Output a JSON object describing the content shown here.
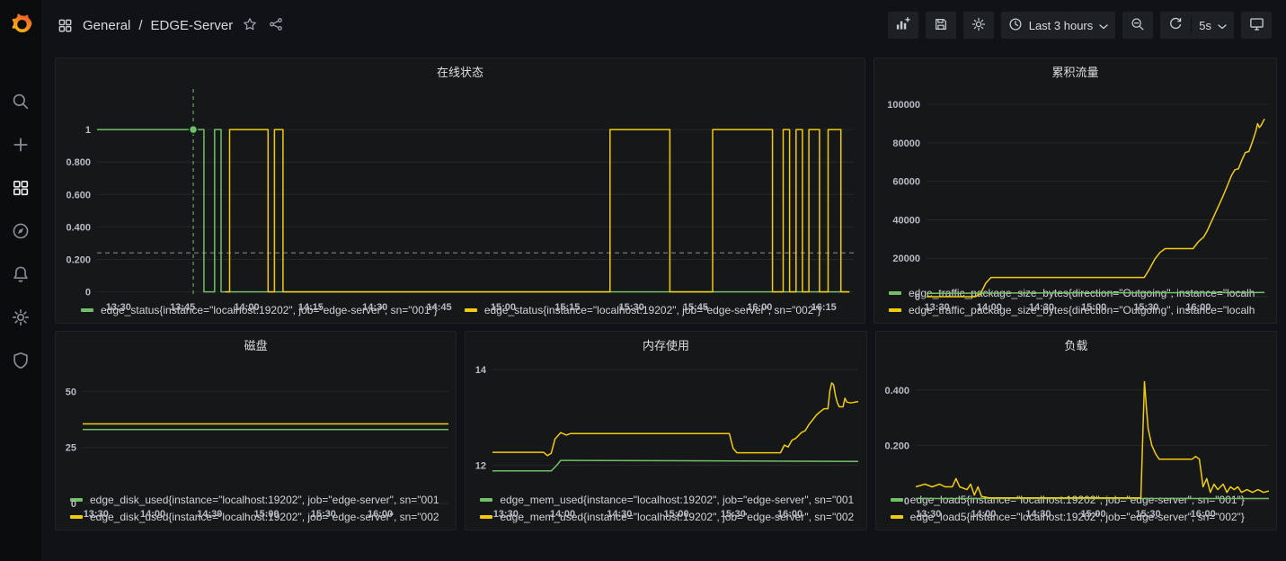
{
  "app": {
    "accent_color": "#f46800",
    "series_green": "#73bf69",
    "series_yellow": "#f2cc0c"
  },
  "sidebar": {
    "logo": "grafana-logo",
    "items": [
      {
        "id": "search",
        "icon": "search-icon"
      },
      {
        "id": "create",
        "icon": "plus-icon"
      },
      {
        "id": "dashboards",
        "icon": "dashboards-icon",
        "active": true
      },
      {
        "id": "explore",
        "icon": "compass-icon"
      },
      {
        "id": "alerting",
        "icon": "bell-icon"
      },
      {
        "id": "configuration",
        "icon": "gear-icon"
      },
      {
        "id": "server-admin",
        "icon": "shield-icon"
      }
    ]
  },
  "header": {
    "breadcrumb": {
      "folder": "General",
      "separator": "/",
      "dashboard": "EDGE-Server"
    },
    "actions": {
      "time_range": "Last 3 hours",
      "refresh_interval": "5s"
    }
  },
  "chart_data": {
    "status": {
      "type": "line",
      "title": "在线状态",
      "margin_left": 46,
      "margin_right": 12,
      "x_range": [
        -5,
        172
      ],
      "y_range": [
        -0.03,
        1.25
      ],
      "x_ticks": [
        {
          "t": 0,
          "label": "13:30"
        },
        {
          "t": 15,
          "label": "13:45"
        },
        {
          "t": 30,
          "label": "14:00"
        },
        {
          "t": 45,
          "label": "14:15"
        },
        {
          "t": 60,
          "label": "14:30"
        },
        {
          "t": 75,
          "label": "14:45"
        },
        {
          "t": 90,
          "label": "15:00"
        },
        {
          "t": 105,
          "label": "15:15"
        },
        {
          "t": 120,
          "label": "15:30"
        },
        {
          "t": 135,
          "label": "15:45"
        },
        {
          "t": 150,
          "label": "16:00"
        },
        {
          "t": 165,
          "label": "16:15"
        }
      ],
      "y_ticks": [
        {
          "v": 0,
          "label": "0"
        },
        {
          "v": 0.2,
          "label": "0.200"
        },
        {
          "v": 0.4,
          "label": "0.400"
        },
        {
          "v": 0.6,
          "label": "0.600"
        },
        {
          "v": 0.8,
          "label": "0.800"
        },
        {
          "v": 1,
          "label": "1"
        }
      ],
      "threshold": {
        "y": 0.24,
        "color": "#8a9099"
      },
      "annotation": {
        "t": 17.5,
        "color": "#73bf69"
      },
      "marker": {
        "t": 17.5,
        "v": 1,
        "color": "#73bf69"
      },
      "series": [
        {
          "name": "edge_status{instance=\"localhost:19202\", job=\"edge-server\", sn=\"001\"}",
          "color": "#73bf69",
          "points": [
            [
              -5,
              1
            ],
            [
              20,
              1
            ],
            [
              20,
              0
            ],
            [
              22.5,
              0
            ],
            [
              22.5,
              1
            ],
            [
              24,
              1
            ],
            [
              24,
              0
            ],
            [
              171,
              0
            ]
          ]
        },
        {
          "name": "edge_status{instance=\"localhost:19202\", job=\"edge-server\", sn=\"002\"}",
          "color": "#f2cc0c",
          "points": [
            [
              25,
              0
            ],
            [
              26,
              0
            ],
            [
              26,
              1
            ],
            [
              35,
              1
            ],
            [
              35,
              0
            ],
            [
              36.5,
              0
            ],
            [
              36.5,
              1
            ],
            [
              38.5,
              1
            ],
            [
              38.5,
              0
            ],
            [
              115,
              0
            ],
            [
              115,
              1
            ],
            [
              129,
              1
            ],
            [
              129,
              0
            ],
            [
              139,
              0
            ],
            [
              139,
              1
            ],
            [
              153,
              1
            ],
            [
              153,
              0
            ],
            [
              155.5,
              0
            ],
            [
              155.5,
              1
            ],
            [
              157,
              1
            ],
            [
              157,
              0
            ],
            [
              158.5,
              0
            ],
            [
              158.5,
              1
            ],
            [
              160,
              1
            ],
            [
              160,
              0
            ],
            [
              161.5,
              0
            ],
            [
              161.5,
              1
            ],
            [
              164,
              1
            ],
            [
              164,
              0
            ],
            [
              166,
              0
            ],
            [
              166,
              1
            ],
            [
              169,
              1
            ],
            [
              169,
              0
            ],
            [
              171,
              0
            ]
          ]
        }
      ]
    },
    "traffic": {
      "type": "line",
      "title": "累积流量",
      "margin_left": 58,
      "margin_right": 9,
      "x_range": [
        -6,
        190
      ],
      "y_range": [
        0,
        108000
      ],
      "x_ticks": [
        {
          "t": 0,
          "label": "13:30"
        },
        {
          "t": 30,
          "label": "14:00"
        },
        {
          "t": 60,
          "label": "14:30"
        },
        {
          "t": 90,
          "label": "15:00"
        },
        {
          "t": 120,
          "label": "15:30"
        },
        {
          "t": 150,
          "label": "16:00"
        }
      ],
      "y_ticks": [
        {
          "v": 0,
          "label": "0"
        },
        {
          "v": 20000,
          "label": "20000"
        },
        {
          "v": 40000,
          "label": "40000"
        },
        {
          "v": 60000,
          "label": "60000"
        },
        {
          "v": 80000,
          "label": "80000"
        },
        {
          "v": 100000,
          "label": "100000"
        }
      ],
      "series": [
        {
          "name": "edge_traffic_package_size_bytes{direction=\"Outgoing\", instance=\"localh",
          "color": "#73bf69",
          "points": [
            [
              -6,
              1800
            ],
            [
              188,
              2200
            ]
          ]
        },
        {
          "name": "edge_traffic_package_size_bytes{direction=\"Outgoing\", instance=\"localh",
          "color": "#f2cc0c",
          "points": [
            [
              -6,
              0
            ],
            [
              22,
              0
            ],
            [
              25,
              1500
            ],
            [
              28,
              7000
            ],
            [
              31,
              10000
            ],
            [
              119,
              10000
            ],
            [
              122,
              14500
            ],
            [
              125,
              19500
            ],
            [
              128,
              23000
            ],
            [
              131,
              25000
            ],
            [
              147,
              25000
            ],
            [
              150,
              28500
            ],
            [
              153,
              31000
            ],
            [
              155,
              34000
            ],
            [
              157,
              38000
            ],
            [
              159,
              42000
            ],
            [
              161,
              46000
            ],
            [
              163,
              50000
            ],
            [
              165,
              54000
            ],
            [
              167,
              58500
            ],
            [
              169,
              63000
            ],
            [
              171,
              66000
            ],
            [
              173,
              66500
            ],
            [
              175,
              71000
            ],
            [
              177,
              75000
            ],
            [
              179,
              75500
            ],
            [
              181,
              80500
            ],
            [
              183,
              86000
            ],
            [
              184,
              90000
            ],
            [
              185,
              88000
            ],
            [
              186,
              89000
            ],
            [
              188,
              92500
            ]
          ]
        }
      ]
    },
    "disk": {
      "type": "line",
      "title": "磁盘",
      "margin_left": 30,
      "margin_right": 8,
      "x_range": [
        -7,
        186
      ],
      "y_range": [
        0,
        63
      ],
      "x_ticks": [
        {
          "t": 0,
          "label": "13:30"
        },
        {
          "t": 30,
          "label": "14:00"
        },
        {
          "t": 60,
          "label": "14:30"
        },
        {
          "t": 90,
          "label": "15:00"
        },
        {
          "t": 120,
          "label": "15:30"
        },
        {
          "t": 150,
          "label": "16:00"
        }
      ],
      "y_ticks": [
        {
          "v": 0,
          "label": "0"
        },
        {
          "v": 25,
          "label": "25"
        },
        {
          "v": 50,
          "label": "50"
        }
      ],
      "series": [
        {
          "name": "edge_disk_used{instance=\"localhost:19202\", job=\"edge-server\", sn=\"001",
          "color": "#73bf69",
          "points": [
            [
              -7,
              33
            ],
            [
              186,
              33
            ]
          ]
        },
        {
          "name": "edge_disk_used{instance=\"localhost:19202\", job=\"edge-server\", sn=\"002",
          "color": "#f2cc0c",
          "points": [
            [
              -7,
              35.5
            ],
            [
              186,
              35.5
            ]
          ]
        }
      ]
    },
    "memory": {
      "type": "line",
      "title": "内存使用",
      "margin_left": 30,
      "margin_right": 8,
      "x_range": [
        -7,
        186
      ],
      "y_range": [
        11.2,
        14.15
      ],
      "x_ticks": [
        {
          "t": 0,
          "label": "13:30"
        },
        {
          "t": 30,
          "label": "14:00"
        },
        {
          "t": 60,
          "label": "14:30"
        },
        {
          "t": 90,
          "label": "15:00"
        },
        {
          "t": 120,
          "label": "15:30"
        },
        {
          "t": 150,
          "label": "16:00"
        }
      ],
      "y_ticks": [
        {
          "v": 12,
          "label": "12"
        },
        {
          "v": 14,
          "label": "14"
        }
      ],
      "series": [
        {
          "name": "edge_mem_used{instance=\"localhost:19202\", job=\"edge-server\", sn=\"001",
          "color": "#73bf69",
          "points": [
            [
              -7,
              11.88
            ],
            [
              24,
              11.88
            ],
            [
              27,
              12.0
            ],
            [
              29,
              12.1
            ],
            [
              186,
              12.08
            ]
          ]
        },
        {
          "name": "edge_mem_used{instance=\"localhost:19202\", job=\"edge-server\", sn=\"002",
          "color": "#f2cc0c",
          "points": [
            [
              -7,
              12.27
            ],
            [
              20,
              12.27
            ],
            [
              22,
              12.2
            ],
            [
              24,
              12.25
            ],
            [
              26,
              12.55
            ],
            [
              29,
              12.68
            ],
            [
              32,
              12.63
            ],
            [
              34,
              12.66
            ],
            [
              118,
              12.66
            ],
            [
              120,
              12.35
            ],
            [
              122,
              12.26
            ],
            [
              145,
              12.26
            ],
            [
              147,
              12.42
            ],
            [
              149,
              12.38
            ],
            [
              151,
              12.52
            ],
            [
              153,
              12.56
            ],
            [
              156,
              12.68
            ],
            [
              158,
              12.72
            ],
            [
              160,
              12.85
            ],
            [
              162,
              12.95
            ],
            [
              164,
              13.05
            ],
            [
              166,
              13.12
            ],
            [
              168,
              13.18
            ],
            [
              170,
              13.18
            ],
            [
              171,
              13.55
            ],
            [
              172,
              13.72
            ],
            [
              173,
              13.68
            ],
            [
              174,
              13.45
            ],
            [
              175,
              13.3
            ],
            [
              176,
              13.22
            ],
            [
              178,
              13.22
            ],
            [
              179,
              13.4
            ],
            [
              180,
              13.32
            ],
            [
              182,
              13.3
            ],
            [
              186,
              13.33
            ]
          ]
        }
      ]
    },
    "load": {
      "type": "line",
      "title": "负载",
      "margin_left": 44,
      "margin_right": 8,
      "x_range": [
        -7,
        186
      ],
      "y_range": [
        -0.01,
        0.5
      ],
      "x_ticks": [
        {
          "t": 0,
          "label": "13:30"
        },
        {
          "t": 30,
          "label": "14:00"
        },
        {
          "t": 60,
          "label": "14:30"
        },
        {
          "t": 90,
          "label": "15:00"
        },
        {
          "t": 120,
          "label": "15:30"
        },
        {
          "t": 150,
          "label": "16:00"
        }
      ],
      "y_ticks": [
        {
          "v": 0,
          "label": "0"
        },
        {
          "v": 0.2,
          "label": "0.200"
        },
        {
          "v": 0.4,
          "label": "0.400"
        }
      ],
      "series": [
        {
          "name": "edge_load5{instance=\"localhost:19202\", job=\"edge-server\", sn=\"001\"}",
          "color": "#73bf69",
          "points": [
            [
              -7,
              0.008
            ],
            [
              186,
              0.008
            ]
          ]
        },
        {
          "name": "edge_load5{instance=\"localhost:19202\", job=\"edge-server\", sn=\"002\"}",
          "color": "#f2cc0c",
          "points": [
            [
              -7,
              0.05
            ],
            [
              -2,
              0.06
            ],
            [
              2,
              0.05
            ],
            [
              6,
              0.06
            ],
            [
              9,
              0.05
            ],
            [
              13,
              0.05
            ],
            [
              15,
              0.08
            ],
            [
              17,
              0.05
            ],
            [
              21,
              0.04
            ],
            [
              23,
              0.06
            ],
            [
              25,
              0.02
            ],
            [
              27,
              0.05
            ],
            [
              29,
              0.015
            ],
            [
              33,
              0.01
            ],
            [
              116,
              0.01
            ],
            [
              118,
              0.43
            ],
            [
              119,
              0.34
            ],
            [
              120,
              0.26
            ],
            [
              122,
              0.2
            ],
            [
              124,
              0.17
            ],
            [
              126,
              0.15
            ],
            [
              144,
              0.15
            ],
            [
              146,
              0.16
            ],
            [
              148,
              0.15
            ],
            [
              150,
              0.05
            ],
            [
              152,
              0.08
            ],
            [
              154,
              0.03
            ],
            [
              156,
              0.06
            ],
            [
              158,
              0.04
            ],
            [
              161,
              0.06
            ],
            [
              163,
              0.03
            ],
            [
              165,
              0.05
            ],
            [
              167,
              0.04
            ],
            [
              169,
              0.05
            ],
            [
              171,
              0.03
            ],
            [
              174,
              0.04
            ],
            [
              177,
              0.03
            ],
            [
              180,
              0.04
            ],
            [
              183,
              0.03
            ],
            [
              186,
              0.035
            ]
          ]
        }
      ]
    }
  }
}
